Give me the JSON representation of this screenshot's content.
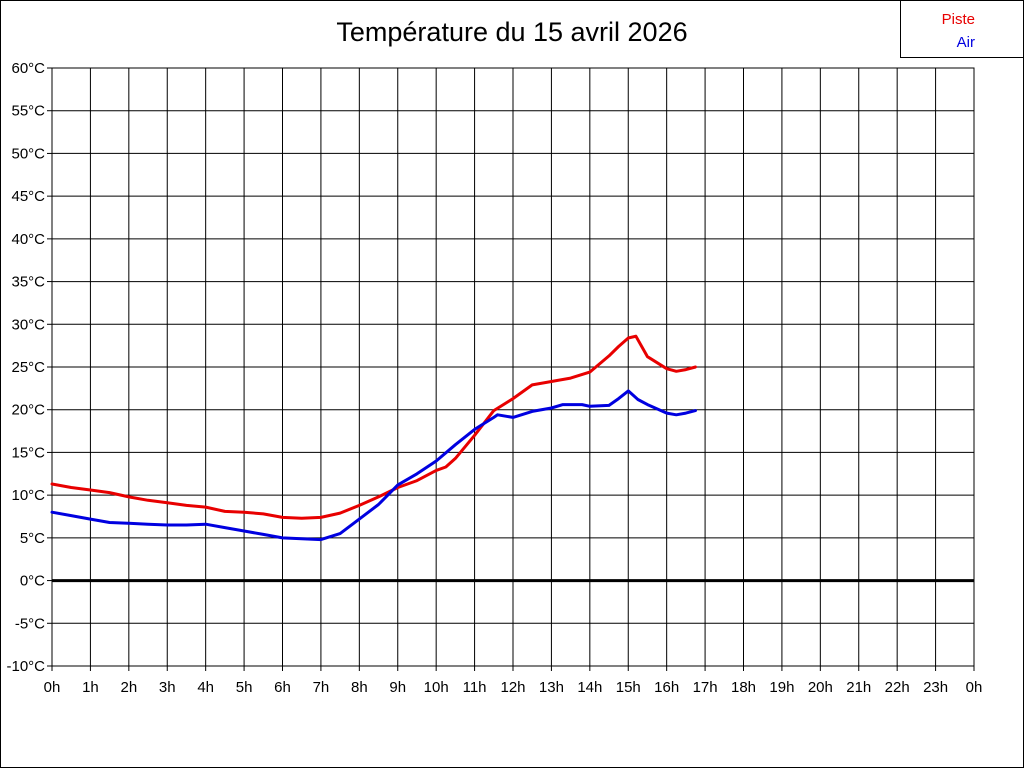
{
  "title": "Température du 15 avril 2026",
  "legend": {
    "items": [
      {
        "label": "Piste",
        "color": "#e80000"
      },
      {
        "label": "Air",
        "color": "#0000e0"
      }
    ]
  },
  "chart_data": {
    "type": "line",
    "title": "Température du 15 avril 2026",
    "xlabel": "",
    "ylabel": "",
    "xlim": [
      0,
      24
    ],
    "ylim": [
      -10,
      60
    ],
    "grid": true,
    "zero_line_bold": true,
    "legend_position": "top-right",
    "x_tick_labels": [
      "0h",
      "1h",
      "2h",
      "3h",
      "4h",
      "5h",
      "6h",
      "7h",
      "8h",
      "9h",
      "10h",
      "11h",
      "12h",
      "13h",
      "14h",
      "15h",
      "16h",
      "17h",
      "18h",
      "19h",
      "20h",
      "21h",
      "22h",
      "23h",
      "0h"
    ],
    "y_tick_labels": [
      "60°C",
      "55°C",
      "50°C",
      "45°C",
      "40°C",
      "35°C",
      "30°C",
      "25°C",
      "20°C",
      "15°C",
      "10°C",
      "5°C",
      "0°C",
      "-5°C",
      "-10°C"
    ],
    "y_tick_values": [
      60,
      55,
      50,
      45,
      40,
      35,
      30,
      25,
      20,
      15,
      10,
      5,
      0,
      -5,
      -10
    ],
    "series": [
      {
        "name": "Piste",
        "color": "#e80000",
        "points": [
          [
            0,
            11.3
          ],
          [
            0.5,
            10.9
          ],
          [
            1,
            10.6
          ],
          [
            1.5,
            10.3
          ],
          [
            2,
            9.8
          ],
          [
            2.5,
            9.4
          ],
          [
            3,
            9.1
          ],
          [
            3.5,
            8.8
          ],
          [
            4,
            8.6
          ],
          [
            4.5,
            8.1
          ],
          [
            5,
            8.0
          ],
          [
            5.5,
            7.8
          ],
          [
            6,
            7.4
          ],
          [
            6.5,
            7.3
          ],
          [
            7,
            7.4
          ],
          [
            7.5,
            7.9
          ],
          [
            8,
            8.8
          ],
          [
            8.5,
            9.8
          ],
          [
            9,
            10.9
          ],
          [
            9.5,
            11.7
          ],
          [
            10,
            12.9
          ],
          [
            10.25,
            13.3
          ],
          [
            10.5,
            14.3
          ],
          [
            11,
            17.0
          ],
          [
            11.5,
            19.9
          ],
          [
            12,
            21.3
          ],
          [
            12.5,
            22.9
          ],
          [
            13,
            23.3
          ],
          [
            13.5,
            23.7
          ],
          [
            14,
            24.4
          ],
          [
            14.5,
            26.3
          ],
          [
            14.75,
            27.4
          ],
          [
            15,
            28.4
          ],
          [
            15.2,
            28.6
          ],
          [
            15.5,
            26.2
          ],
          [
            16,
            24.8
          ],
          [
            16.25,
            24.5
          ],
          [
            16.5,
            24.7
          ],
          [
            16.75,
            25.0
          ]
        ]
      },
      {
        "name": "Air",
        "color": "#0000e0",
        "points": [
          [
            0,
            8.0
          ],
          [
            0.5,
            7.6
          ],
          [
            1,
            7.2
          ],
          [
            1.5,
            6.8
          ],
          [
            2,
            6.7
          ],
          [
            2.5,
            6.6
          ],
          [
            3,
            6.5
          ],
          [
            3.5,
            6.5
          ],
          [
            4,
            6.6
          ],
          [
            4.5,
            6.2
          ],
          [
            5,
            5.8
          ],
          [
            5.5,
            5.4
          ],
          [
            6,
            5.0
          ],
          [
            6.5,
            4.9
          ],
          [
            7,
            4.8
          ],
          [
            7.5,
            5.5
          ],
          [
            8,
            7.2
          ],
          [
            8.5,
            8.9
          ],
          [
            9,
            11.2
          ],
          [
            9.5,
            12.5
          ],
          [
            10,
            14.0
          ],
          [
            10.5,
            15.9
          ],
          [
            11,
            17.7
          ],
          [
            11.5,
            19.1
          ],
          [
            11.6,
            19.4
          ],
          [
            12,
            19.1
          ],
          [
            12.5,
            19.8
          ],
          [
            13,
            20.2
          ],
          [
            13.3,
            20.6
          ],
          [
            13.8,
            20.6
          ],
          [
            14,
            20.4
          ],
          [
            14.5,
            20.5
          ],
          [
            14.75,
            21.3
          ],
          [
            15,
            22.2
          ],
          [
            15.25,
            21.2
          ],
          [
            15.5,
            20.6
          ],
          [
            16,
            19.6
          ],
          [
            16.25,
            19.4
          ],
          [
            16.5,
            19.6
          ],
          [
            16.75,
            19.9
          ]
        ]
      }
    ]
  }
}
